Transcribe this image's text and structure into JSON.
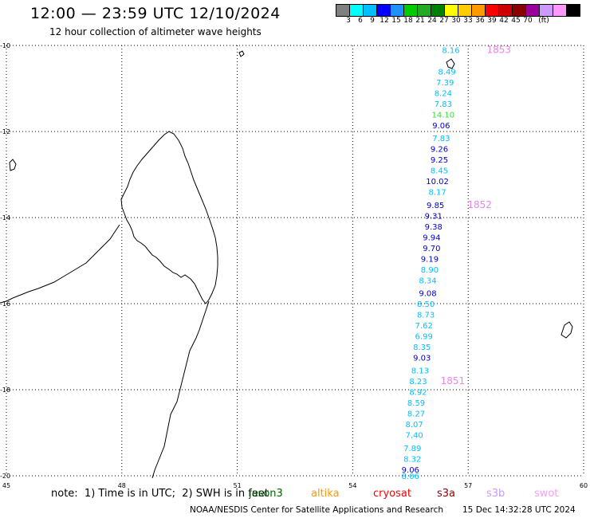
{
  "header": {
    "title": "12:00 — 23:59 UTC 12/10/2024",
    "subtitle": "12 hour collection of altimeter wave heights"
  },
  "legend": {
    "colors": [
      "#808080",
      "#00ffff",
      "#00bfff",
      "#0000ff",
      "#1e90ff",
      "#00cc00",
      "#22aa22",
      "#008000",
      "#ffff00",
      "#ffcc00",
      "#ff9900",
      "#ff0000",
      "#cc0000",
      "#8b0000",
      "#990099",
      "#cc99ff",
      "#ff99ff",
      "#000000"
    ],
    "labels": [
      "3",
      "6",
      "9",
      "12",
      "15",
      "18",
      "21",
      "24",
      "27",
      "30",
      "33",
      "36",
      "39",
      "42",
      "45",
      "70",
      "(ft)"
    ]
  },
  "chart_data": {
    "type": "scatter",
    "title": "12:00 — 23:59 UTC 12/10/2024",
    "subtitle": "12 hour collection of altimeter wave heights",
    "xlim": [
      45,
      60
    ],
    "ylim": [
      -20,
      -10
    ],
    "x_ticks": [
      "45",
      "48",
      "51",
      "54",
      "57",
      "60"
    ],
    "y_ticks": [
      "-10",
      "-12",
      "-14",
      "-16",
      "-18",
      "-20"
    ],
    "grid": true,
    "units": "ft",
    "track_labels": [
      {
        "label": "1853",
        "lon": 57.8,
        "lat": -10.1
      },
      {
        "label": "1852",
        "lon": 57.3,
        "lat": -13.7
      },
      {
        "label": "1851",
        "lon": 56.6,
        "lat": -17.8
      }
    ],
    "points": [
      {
        "lon": 56.55,
        "lat": -10.1,
        "value": "8.16",
        "color": "#00bfff"
      },
      {
        "lon": 56.45,
        "lat": -10.6,
        "value": "8.49",
        "color": "#00bfff"
      },
      {
        "lon": 56.4,
        "lat": -10.85,
        "value": "7.39",
        "color": "#00bfff"
      },
      {
        "lon": 56.35,
        "lat": -11.1,
        "value": "8.24",
        "color": "#00bfff"
      },
      {
        "lon": 56.35,
        "lat": -11.35,
        "value": "7.83",
        "color": "#00bfff"
      },
      {
        "lon": 56.35,
        "lat": -11.6,
        "value": "14.10",
        "color": "#33dd33"
      },
      {
        "lon": 56.3,
        "lat": -11.85,
        "value": "9.06",
        "color": "#0000cc"
      },
      {
        "lon": 56.3,
        "lat": -12.15,
        "value": "7.83",
        "color": "#00bfff"
      },
      {
        "lon": 56.25,
        "lat": -12.4,
        "value": "9.26",
        "color": "#0000cc"
      },
      {
        "lon": 56.25,
        "lat": -12.65,
        "value": "9.25",
        "color": "#0000cc"
      },
      {
        "lon": 56.25,
        "lat": -12.9,
        "value": "8.45",
        "color": "#00bfff"
      },
      {
        "lon": 56.2,
        "lat": -13.15,
        "value": "10.02",
        "color": "#0000cc"
      },
      {
        "lon": 56.2,
        "lat": -13.4,
        "value": "8.17",
        "color": "#00bfff"
      },
      {
        "lon": 56.15,
        "lat": -13.7,
        "value": "9.85",
        "color": "#0000cc"
      },
      {
        "lon": 56.1,
        "lat": -13.95,
        "value": "9.31",
        "color": "#0000cc"
      },
      {
        "lon": 56.1,
        "lat": -14.2,
        "value": "9.38",
        "color": "#0000cc"
      },
      {
        "lon": 56.05,
        "lat": -14.45,
        "value": "9.94",
        "color": "#0000cc"
      },
      {
        "lon": 56.05,
        "lat": -14.7,
        "value": "9.70",
        "color": "#0000cc"
      },
      {
        "lon": 56.0,
        "lat": -14.95,
        "value": "9.19",
        "color": "#0000cc"
      },
      {
        "lon": 56.0,
        "lat": -15.2,
        "value": "8.90",
        "color": "#00bfff"
      },
      {
        "lon": 55.95,
        "lat": -15.45,
        "value": "8.34",
        "color": "#00bfff"
      },
      {
        "lon": 55.95,
        "lat": -15.75,
        "value": "9.08",
        "color": "#0000cc"
      },
      {
        "lon": 55.9,
        "lat": -16.0,
        "value": "8.50",
        "color": "#00bfff"
      },
      {
        "lon": 55.9,
        "lat": -16.25,
        "value": "8.73",
        "color": "#00bfff"
      },
      {
        "lon": 55.85,
        "lat": -16.5,
        "value": "7.62",
        "color": "#00bfff"
      },
      {
        "lon": 55.85,
        "lat": -16.75,
        "value": "6.99",
        "color": "#00bfff"
      },
      {
        "lon": 55.8,
        "lat": -17.0,
        "value": "8.35",
        "color": "#00bfff"
      },
      {
        "lon": 55.8,
        "lat": -17.25,
        "value": "9.03",
        "color": "#0000cc"
      },
      {
        "lon": 55.75,
        "lat": -17.55,
        "value": "8.13",
        "color": "#00bfff"
      },
      {
        "lon": 55.7,
        "lat": -17.8,
        "value": "8.23",
        "color": "#00bfff"
      },
      {
        "lon": 55.7,
        "lat": -18.05,
        "value": "8.92",
        "color": "#00bfff"
      },
      {
        "lon": 55.65,
        "lat": -18.3,
        "value": "8.59",
        "color": "#00bfff"
      },
      {
        "lon": 55.65,
        "lat": -18.55,
        "value": "8.27",
        "color": "#00bfff"
      },
      {
        "lon": 55.6,
        "lat": -18.8,
        "value": "8.07",
        "color": "#00bfff"
      },
      {
        "lon": 55.6,
        "lat": -19.05,
        "value": "7.40",
        "color": "#00bfff"
      },
      {
        "lon": 55.55,
        "lat": -19.35,
        "value": "7.89",
        "color": "#00bfff"
      },
      {
        "lon": 55.55,
        "lat": -19.6,
        "value": "8.32",
        "color": "#00bfff"
      },
      {
        "lon": 55.5,
        "lat": -19.85,
        "value": "9.06",
        "color": "#0000cc"
      },
      {
        "lon": 55.5,
        "lat": -20.0,
        "value": "8.06",
        "color": "#00bfff"
      }
    ]
  },
  "footer": {
    "note": "note:  1) Time is in UTC;  2) SWH is in feet",
    "satellites": [
      {
        "name": "jason3",
        "color": "#006400"
      },
      {
        "name": "altika",
        "color": "#ff9900"
      },
      {
        "name": "cryosat",
        "color": "#ff0000"
      },
      {
        "name": "s3a",
        "color": "#8b0000"
      },
      {
        "name": "s3b",
        "color": "#cc99ff"
      },
      {
        "name": "swot",
        "color": "#ff99ff"
      }
    ],
    "credit": "NOAA/NESDIS Center for Satellite Applications and Research",
    "timestamp": "15 Dec 14:32:28 UTC 2024"
  }
}
